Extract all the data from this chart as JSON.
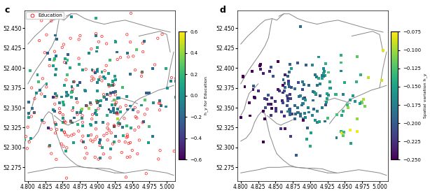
{
  "xlim": [
    4.795,
    5.012
  ],
  "ylim": [
    52.258,
    52.472
  ],
  "xticks": [
    4.8,
    4.825,
    4.85,
    4.875,
    4.9,
    4.925,
    4.95,
    4.975,
    5.0
  ],
  "yticks": [
    52.275,
    52.3,
    52.325,
    52.35,
    52.375,
    52.4,
    52.425,
    52.45
  ],
  "cmap1": "viridis",
  "cmap2": "viridis",
  "clim1": [
    -0.6,
    0.6
  ],
  "clim2": [
    -0.25,
    -0.075
  ],
  "cticks1": [
    -0.6,
    -0.4,
    -0.2,
    0.0,
    0.2,
    0.4,
    0.6
  ],
  "cticks2": [
    -0.25,
    -0.225,
    -0.2,
    -0.175,
    -0.15,
    -0.125,
    -0.1,
    -0.075
  ],
  "clabel1": "h_y for Education",
  "clabel2": "Spatial variation h_y",
  "subplot_label_left": "c",
  "subplot_label_right": "d",
  "legend_label": "Education",
  "background_color": "#ffffff",
  "boundary_color": "#888888",
  "point_size": 8,
  "edu_size": 6,
  "seed": 12345
}
